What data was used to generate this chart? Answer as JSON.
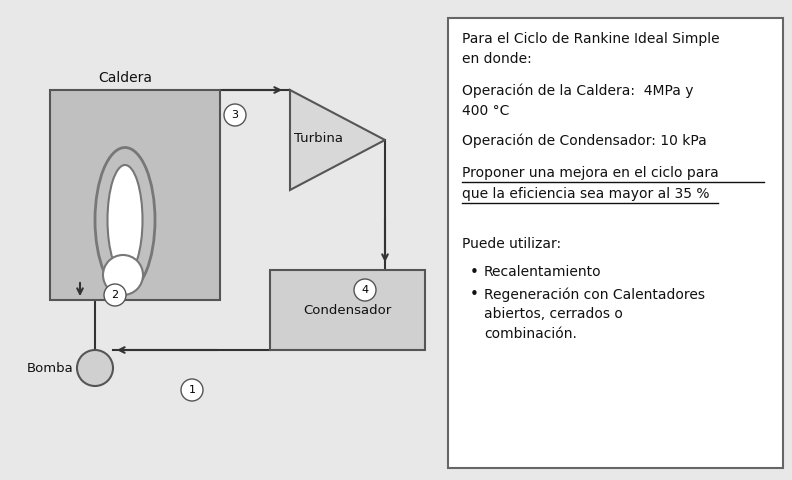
{
  "bg_color": "#e8e8e8",
  "title_line1": "Para el Ciclo de Rankine Ideal Simple",
  "title_line2": "en donde:",
  "line1": "Operación de la Caldera:  4MPa y",
  "line2": "400 °C",
  "line3": "Operación de Condensador: 10 kPa",
  "underline_text1": "Proponer una mejora en el ciclo para",
  "underline_text2": "que la eficiencia sea mayor al 35 %",
  "puede_text": "Puede utilizar:",
  "bullet1": "Recalentamiento",
  "bullet2": "Regeneración con Calentadores",
  "bullet2b": "abiertos, cerrados o",
  "bullet2c": "combinación.",
  "caldera_label": "Caldera",
  "turbina_label": "Turbina",
  "condensador_label": "Condensador",
  "bomba_label": "Bomba",
  "node1": "1",
  "node2": "2",
  "node3": "3",
  "node4": "4"
}
